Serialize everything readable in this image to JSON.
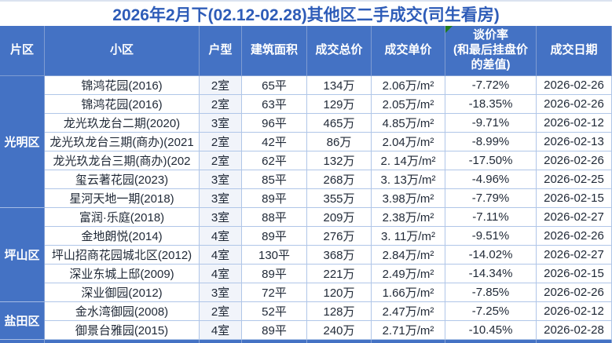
{
  "title": "2026年2月下(02.12-02.28)其他区二手成交(司生看房)",
  "table": {
    "columns": [
      "片区",
      "小区",
      "户型",
      "建筑面积",
      "成交总价",
      "成交单价",
      "谈价率\n(和最后挂盘价\n的差值)",
      "成交日期"
    ],
    "header_flag": {
      "column": "谈价率\n(和最后挂盘价\n的差值)",
      "icon": "green-corner-triangle"
    },
    "regions": [
      {
        "name": "光明区",
        "row_span": 7
      },
      {
        "name": "坪山区",
        "row_span": 5
      },
      {
        "name": "盐田区",
        "row_span": 2
      }
    ],
    "rows": [
      [
        "锦鸿花园(2016)",
        "2室",
        "65平",
        "134万",
        "2.06万/m²",
        "-7.72%",
        "2026-02-26"
      ],
      [
        "锦鸿花园(2016)",
        "2室",
        "63平",
        "129万",
        "2.05万/m²",
        "-18.35%",
        "2026-02-26"
      ],
      [
        "龙光玖龙台二期(2020)",
        "3室",
        "96平",
        "465万",
        "4.85万/m²",
        "-9.71%",
        "2026-02-12"
      ],
      [
        "龙光玖龙台三期(商办)(2021",
        "2室",
        "42平",
        "86万",
        "2.04万/m²",
        "-8.99%",
        "2026-02-13"
      ],
      [
        "龙光玖龙台三期(商办)(202",
        "2室",
        "62平",
        "132万",
        "2. 14万/m²",
        "-17.50%",
        "2026-02-26"
      ],
      [
        "玺云著花园(2023)",
        "3室",
        "85平",
        "268万",
        "3. 13万/m²",
        "-4.96%",
        "2026-02-25"
      ],
      [
        "星河天地一期(2018)",
        "3室",
        "89平",
        "355万",
        "3.98万/m²",
        "-7.79%",
        "2026-02-15"
      ],
      [
        "富润·乐庭(2018)",
        "3室",
        "88平",
        "209万",
        "2.38万/m²",
        "-7.11%",
        "2026-02-27"
      ],
      [
        "金地朗悦(2014)",
        "4室",
        "89平",
        "276万",
        "3. 11万/m²",
        "-9.51%",
        "2026-02-26"
      ],
      [
        "坪山招商花园城北区(2012)",
        "4室",
        "130平",
        "368万",
        "2.84万/m²",
        "-14.02%",
        "2026-02-27"
      ],
      [
        "深业东城上邸(2009)",
        "4室",
        "89平",
        "221万",
        "2.49万/m²",
        "-14.34%",
        "2026-02-15"
      ],
      [
        "深业御园(2012)",
        "3室",
        "72平",
        "120万",
        "1.66万/m²",
        "-7.85%",
        "2026-02-26"
      ],
      [
        "金水湾御园(2008)",
        "2室",
        "52平",
        "128万",
        "2.47万/m²",
        "-7.25%",
        "2026-02-12"
      ],
      [
        "御景台雅园(2015)",
        "4室",
        "89平",
        "240万",
        "2.71万/m²",
        "-10.45%",
        "2026-02-28"
      ]
    ]
  },
  "colors": {
    "header_bg": "#4472c4",
    "region_bg": "#4472c4",
    "title_text": "#2e5cb8",
    "grid_border": "#b0c6e8",
    "flag_green": "#1e7a1e",
    "cell_text": "#1f2836"
  }
}
